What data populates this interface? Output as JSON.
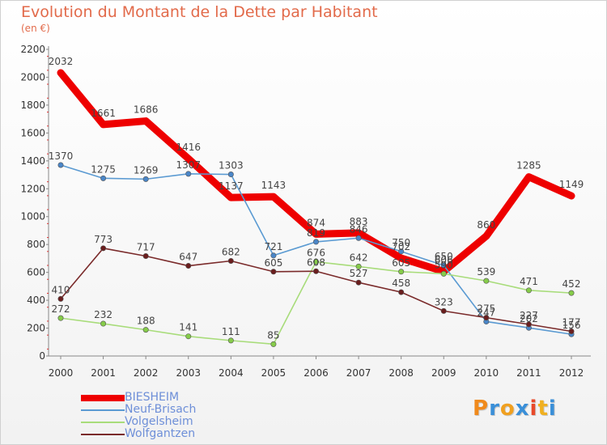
{
  "header": {
    "title": "Evolution du Montant de la Dette par Habitant",
    "subtitle": "(en €)"
  },
  "brand": {
    "text": "Proxiti",
    "letter_colors": [
      "#f08a1c",
      "#3a8fd8",
      "#f0a020",
      "#3a8fd8",
      "#e84a2a",
      "#f0b020",
      "#3a8fd8"
    ]
  },
  "chart_data": {
    "type": "line",
    "title": "Evolution du Montant de la Dette par Habitant",
    "subtitle": "(en €)",
    "xlabel": "",
    "ylabel": "",
    "x": [
      "2000",
      "2001",
      "2002",
      "2003",
      "2004",
      "2005",
      "2006",
      "2007",
      "2008",
      "2009",
      "2010",
      "2011",
      "2012"
    ],
    "ylim": [
      0,
      2200
    ],
    "yticks": [
      0,
      200,
      400,
      600,
      800,
      1000,
      1200,
      1400,
      1600,
      1800,
      2000,
      2200
    ],
    "grid": false,
    "legend_position": "bottom-left",
    "series": [
      {
        "name": "BIESHEIM",
        "color": "#ee0000",
        "line_width": "thick",
        "values": [
          2032,
          1661,
          1686,
          1416,
          1137,
          1143,
          874,
          883,
          702,
          606,
          860,
          1285,
          1149
        ]
      },
      {
        "name": "Neuf-Brisach",
        "color": "#5a9ad2",
        "marker_color": "#4a86c8",
        "line_width": "thin",
        "values": [
          1370,
          1275,
          1269,
          1307,
          1303,
          721,
          819,
          846,
          750,
          650,
          247,
          202,
          156
        ]
      },
      {
        "name": "Volgelsheim",
        "color": "#a8dc7a",
        "marker_color": "#86cc4a",
        "line_width": "thin",
        "values": [
          272,
          232,
          188,
          141,
          111,
          85,
          676,
          642,
          605,
          590,
          539,
          471,
          452
        ]
      },
      {
        "name": "Wolfgantzen",
        "color": "#7a2a2a",
        "marker_color": "#6a1e1e",
        "line_width": "thin",
        "values": [
          410,
          773,
          717,
          647,
          682,
          605,
          608,
          527,
          458,
          323,
          275,
          227,
          177
        ]
      }
    ]
  }
}
